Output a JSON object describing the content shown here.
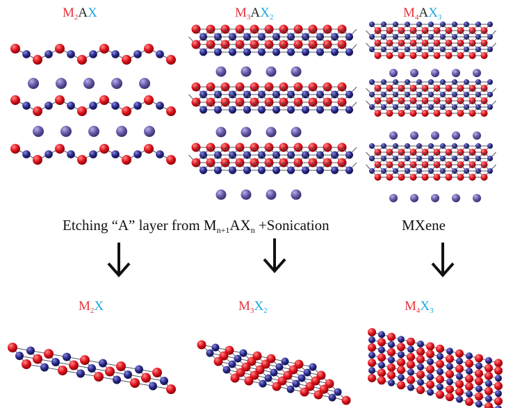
{
  "colors": {
    "m_atom": "#e0141e",
    "x_atom": "#2a2a8c",
    "a_atom": "#6a5aa8",
    "bond": "#555566",
    "m_label": "#e8323c",
    "x_label": "#19a9e0",
    "a_label": "#222222",
    "text": "#111111"
  },
  "structures": [
    {
      "id": "m2ax",
      "m": "M",
      "m_sub": "2",
      "a": "A",
      "x": "X",
      "x_sub": ""
    },
    {
      "id": "m3ax2",
      "m": "M",
      "m_sub": "3",
      "a": "A",
      "x": "X",
      "x_sub": "2"
    },
    {
      "id": "m4ax3",
      "m": "M",
      "m_sub": "4",
      "a": "A",
      "x": "X",
      "x_sub": "3"
    }
  ],
  "process": {
    "prefix": "Etching “A” layer from M",
    "sub1": "n+1",
    "mid": "AX",
    "sub2": "n",
    "suffix": " +Sonication",
    "result": "MXene"
  },
  "products": [
    {
      "id": "m2x",
      "m": "M",
      "m_sub": "2",
      "x": "X",
      "x_sub": ""
    },
    {
      "id": "m3x2",
      "m": "M",
      "m_sub": "3",
      "x": "X",
      "x_sub": "2"
    },
    {
      "id": "m4x3",
      "m": "M",
      "m_sub": "4",
      "x": "X",
      "x_sub": "3"
    }
  ]
}
